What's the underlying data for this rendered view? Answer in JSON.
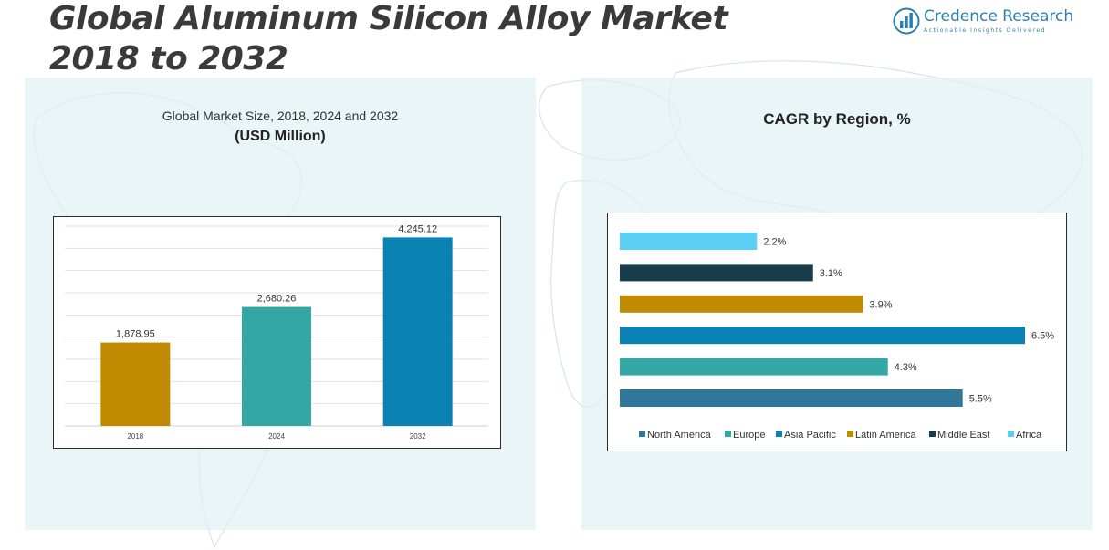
{
  "header": {
    "title_line1": "Global Aluminum Silicon Alloy Market",
    "title_line2": "2018 to 2032"
  },
  "logo": {
    "name": "Credence Research",
    "tagline": "Actionable Insights Delivered",
    "icon": "bar-chart-circle-icon",
    "color": "#2c7fb0"
  },
  "left_panel": {
    "subtitle": "Global Market Size, 2018, 2024 and 2032",
    "unit": "(USD Million)"
  },
  "right_panel": {
    "title": "CAGR by Region, %"
  },
  "chart_data": [
    {
      "type": "bar",
      "title": "Global Market Size, 2018, 2024 and 2032",
      "ylabel": "USD Million",
      "categories": [
        "2018",
        "2024",
        "2032"
      ],
      "values": [
        1878.95,
        2680.26,
        4245.12
      ],
      "value_labels": [
        "1,878.95",
        "2,680.26",
        "4,245.12"
      ],
      "colors": [
        "#c08b00",
        "#33a7a3",
        "#0a83b4"
      ],
      "ylim": [
        0,
        4500
      ],
      "grid": true
    },
    {
      "type": "bar",
      "orientation": "horizontal",
      "title": "CAGR by Region, %",
      "categories": [
        "North America",
        "Europe",
        "Asia Pacific",
        "Latin America",
        "Middle East",
        "Africa"
      ],
      "values": [
        5.5,
        4.3,
        6.5,
        3.9,
        3.1,
        2.2
      ],
      "value_labels": [
        "5.5%",
        "4.3%",
        "6.5%",
        "3.9%",
        "3.1%",
        "2.2%"
      ],
      "colors": [
        "#2f7899",
        "#33a7a3",
        "#0a83b4",
        "#c08b00",
        "#173d4b",
        "#5ccff5"
      ],
      "xlim": [
        0,
        6.5
      ],
      "legend_position": "bottom"
    }
  ]
}
